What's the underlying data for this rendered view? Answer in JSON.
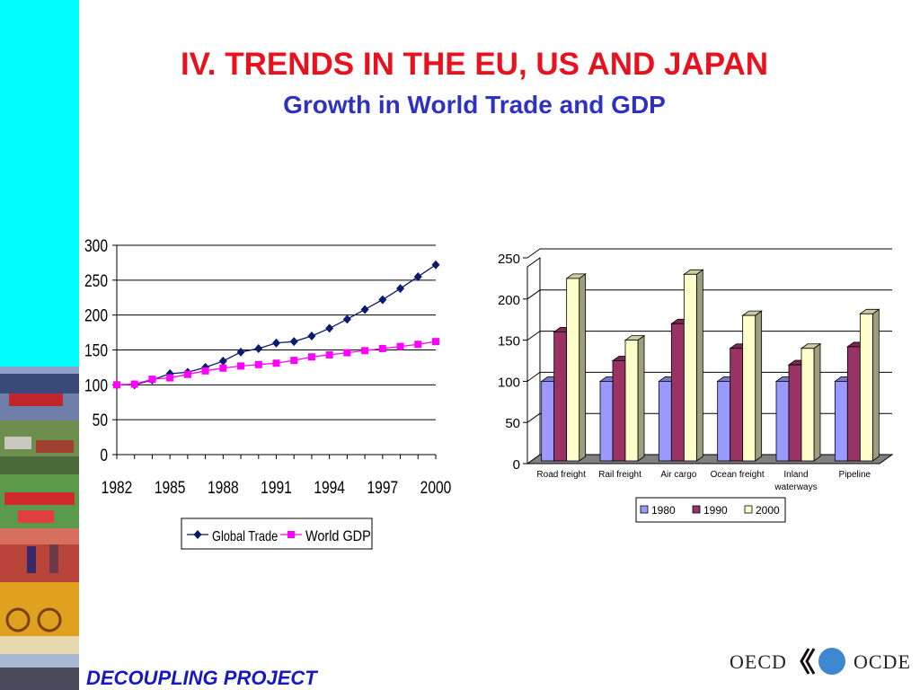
{
  "slide": {
    "title": "IV. TRENDS IN THE EU, US AND JAPAN",
    "subtitle": "Growth in World Trade and GDP",
    "footer": "DECOUPLING PROJECT",
    "logo_left": "OECD",
    "logo_right": "OCDE",
    "colors": {
      "sidebar": "#00ffff",
      "title": "#e8121e",
      "subtitle": "#2f32c0",
      "footer": "#1818c0"
    }
  },
  "chart_data": [
    {
      "type": "line",
      "x": [
        1982,
        1983,
        1984,
        1985,
        1986,
        1987,
        1988,
        1989,
        1990,
        1991,
        1992,
        1993,
        1994,
        1995,
        1996,
        1997,
        1998,
        1999,
        2000
      ],
      "xticks": [
        "1982",
        "1985",
        "1988",
        "1991",
        "1994",
        "1997",
        "2000"
      ],
      "yticks": [
        "0",
        "50",
        "100",
        "150",
        "200",
        "250",
        "300"
      ],
      "ylim": [
        0,
        300
      ],
      "grid": true,
      "legend_position": "bottom",
      "series": [
        {
          "name": "Global Trade",
          "color": "#0a1a6e",
          "marker": "diamond",
          "values": [
            100,
            100,
            107,
            116,
            118,
            125,
            134,
            147,
            152,
            160,
            162,
            170,
            181,
            194,
            208,
            222,
            238,
            255,
            272
          ]
        },
        {
          "name": "World GDP",
          "color": "#ff00ff",
          "marker": "square",
          "values": [
            100,
            101,
            108,
            110,
            115,
            120,
            124,
            127,
            129,
            131,
            135,
            140,
            143,
            146,
            149,
            152,
            155,
            158,
            162
          ]
        }
      ]
    },
    {
      "type": "bar",
      "categories": [
        "Road freight",
        "Rail freight",
        "Air cargo",
        "Ocean freight",
        "Inland waterways",
        "Pipeline"
      ],
      "category_lines": [
        [
          "Road freight"
        ],
        [
          "Rail freight"
        ],
        [
          "Air cargo"
        ],
        [
          "Ocean freight"
        ],
        [
          "Inland",
          "waterways"
        ],
        [
          "Pipeline"
        ]
      ],
      "yticks": [
        "0",
        "50",
        "100",
        "150",
        "200",
        "250"
      ],
      "ylim": [
        0,
        250
      ],
      "grid": true,
      "legend_position": "bottom",
      "series": [
        {
          "name": "1980",
          "color": "#9999ff",
          "values": [
            100,
            100,
            100,
            100,
            100,
            100
          ]
        },
        {
          "name": "1990",
          "color": "#993366",
          "values": [
            160,
            125,
            170,
            140,
            120,
            142
          ]
        },
        {
          "name": "2000",
          "color": "#ffffcc",
          "values": [
            225,
            150,
            230,
            180,
            140,
            182
          ]
        }
      ]
    }
  ]
}
